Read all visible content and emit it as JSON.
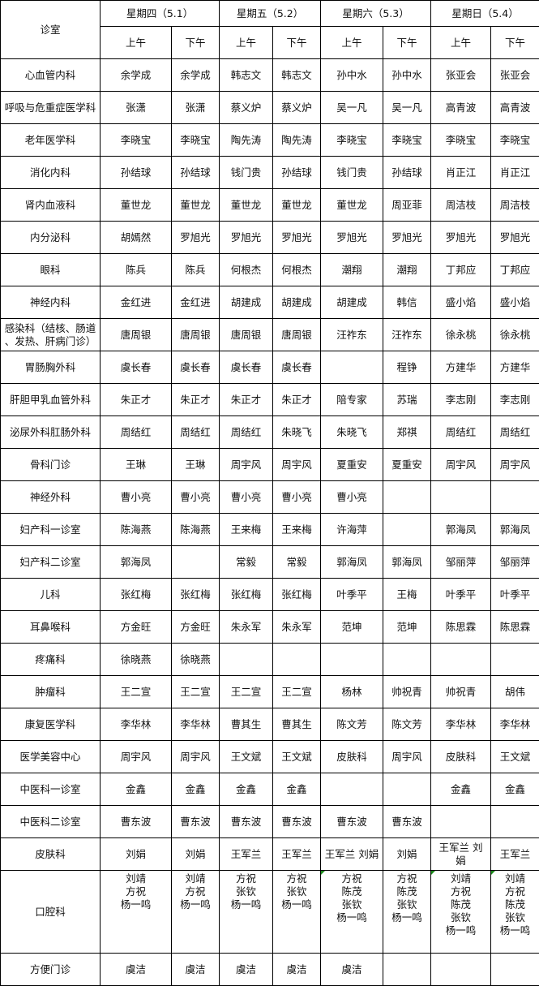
{
  "header": {
    "dept_label": "诊室",
    "days": [
      "星期四（5.1）",
      "星期五（5.2）",
      "星期六（5.3）",
      "星期日（5.4）"
    ],
    "am": "上午",
    "pm": "下午"
  },
  "rows": [
    {
      "dept": "心血管内科",
      "cells": [
        "余学成",
        "余学成",
        "韩志文",
        "韩志文",
        "孙中水",
        "孙中水",
        "张亚会",
        "张亚会"
      ]
    },
    {
      "dept": "呼吸与危重症医学科",
      "cells": [
        "张潇",
        "张潇",
        "蔡义炉",
        "蔡义炉",
        "吴一凡",
        "吴一凡",
        "高青波",
        "高青波"
      ]
    },
    {
      "dept": "老年医学科",
      "cells": [
        "李晓宝",
        "李晓宝",
        "陶先涛",
        "陶先涛",
        "李晓宝",
        "李晓宝",
        "李晓宝",
        "李晓宝"
      ]
    },
    {
      "dept": "消化内科",
      "cells": [
        "孙结球",
        "孙结球",
        "钱门贵",
        "孙结球",
        "钱门贵",
        "孙结球",
        "肖正江",
        "肖正江"
      ]
    },
    {
      "dept": "肾内血液科",
      "cells": [
        "董世龙",
        "董世龙",
        "董世龙",
        "董世龙",
        "董世龙",
        "周亚菲",
        "周洁枝",
        "周洁枝"
      ]
    },
    {
      "dept": "内分泌科",
      "cells": [
        "胡嫣然",
        "罗旭光",
        "罗旭光",
        "罗旭光",
        "罗旭光",
        "罗旭光",
        "罗旭光",
        "罗旭光"
      ]
    },
    {
      "dept": "眼科",
      "cells": [
        "陈兵",
        "陈兵",
        "何根杰",
        "何根杰",
        "潮翔",
        "潮翔",
        "丁邦应",
        "丁邦应"
      ]
    },
    {
      "dept": "神经内科",
      "cells": [
        "金红进",
        "金红进",
        "胡建成",
        "胡建成",
        "胡建成",
        "韩信",
        "盛小焰",
        "盛小焰"
      ]
    },
    {
      "dept": "感染科（结核、肠道\n、发热、肝病门诊）",
      "cells": [
        "唐周银",
        "唐周银",
        "唐周银",
        "唐周银",
        "汪祚东",
        "汪祚东",
        "徐永桃",
        "徐永桃"
      ]
    },
    {
      "dept": "胃肠胸外科",
      "cells": [
        "虞长春",
        "虞长春",
        "虞长春",
        "虞长春",
        "",
        "程铮",
        "方建华",
        "方建华"
      ]
    },
    {
      "dept": "肝胆甲乳血管外科",
      "cells": [
        "朱正才",
        "朱正才",
        "朱正才",
        "朱正才",
        "陪专家",
        "苏瑞",
        "李志刚",
        "李志刚"
      ]
    },
    {
      "dept": "泌尿外科肛肠外科",
      "cells": [
        "周结红",
        "周结红",
        "周结红",
        "朱晓飞",
        "朱晓飞",
        "郑祺",
        "周结红",
        "周结红"
      ]
    },
    {
      "dept": "骨科门诊",
      "cells": [
        "王琳",
        "王琳",
        "周宇风",
        "周宇风",
        "夏重安",
        "夏重安",
        "周宇风",
        "周宇风"
      ]
    },
    {
      "dept": "神经外科",
      "cells": [
        "曹小亮",
        "曹小亮",
        "曹小亮",
        "曹小亮",
        "曹小亮",
        "",
        "",
        ""
      ]
    },
    {
      "dept": "妇产科一诊室",
      "cells": [
        "陈海燕",
        "陈海燕",
        "王来梅",
        "王来梅",
        "许海萍",
        "",
        "郭海凤",
        "郭海凤"
      ]
    },
    {
      "dept": "妇产科二诊室",
      "cells": [
        "郭海凤",
        "",
        "常毅",
        "常毅",
        "郭海凤",
        "郭海凤",
        "邹丽萍",
        "邹丽萍"
      ]
    },
    {
      "dept": "儿科",
      "cells": [
        "张红梅",
        "张红梅",
        "张红梅",
        "张红梅",
        "叶季平",
        "王梅",
        "叶季平",
        "叶季平"
      ]
    },
    {
      "dept": "耳鼻喉科",
      "cells": [
        "方金旺",
        "方金旺",
        "朱永军",
        "朱永军",
        "范坤",
        "范坤",
        "陈思霖",
        "陈思霖"
      ]
    },
    {
      "dept": "疼痛科",
      "cells": [
        "徐晓燕",
        "徐晓燕",
        "",
        "",
        "",
        "",
        "",
        ""
      ]
    },
    {
      "dept": "肿瘤科",
      "cells": [
        "王二宣",
        "王二宣",
        "王二宣",
        "王二宣",
        "杨林",
        "帅祝青",
        "帅祝青",
        "胡伟"
      ]
    },
    {
      "dept": "康复医学科",
      "cells": [
        "李华林",
        "李华林",
        "曹其生",
        "曹其生",
        "陈文芳",
        "陈文芳",
        "李华林",
        "李华林"
      ]
    },
    {
      "dept": "医学美容中心",
      "cells": [
        "周宇风",
        "周宇风",
        "王文斌",
        "王文斌",
        "皮肤科",
        "周宇风",
        "皮肤科",
        "王文斌"
      ]
    },
    {
      "dept": "中医科一诊室",
      "cells": [
        "金鑫",
        "金鑫",
        "金鑫",
        "金鑫",
        "",
        "",
        "金鑫",
        "金鑫"
      ]
    },
    {
      "dept": "中医科二诊室",
      "cells": [
        "曹东波",
        "曹东波",
        "曹东波",
        "曹东波",
        "曹东波",
        "曹东波",
        "",
        ""
      ]
    },
    {
      "dept": "皮肤科",
      "cells": [
        "刘娟",
        "刘娟",
        "王军兰",
        "王军兰",
        "王军兰  刘娟",
        "刘娟",
        "王军兰  刘\n娟",
        "王军兰"
      ]
    }
  ],
  "dental": {
    "dept": "口腔科",
    "cells": [
      "刘靖\n方祝\n杨一鸣",
      "刘靖\n方祝\n杨一鸣",
      "方祝\n张钦\n杨一鸣",
      "方祝\n张钦\n杨一鸣",
      "方祝\n陈茂\n张钦\n杨一鸣",
      "方祝\n陈茂\n张钦\n杨一鸣",
      "刘靖\n方祝\n陈茂\n张钦\n杨一鸣",
      "刘靖\n方祝\n陈茂\n张钦\n杨一鸣"
    ]
  },
  "convenience": {
    "dept": "方便门诊",
    "cells": [
      "虞洁",
      "虞洁",
      "虞洁",
      "虞洁",
      "虞洁",
      "",
      "",
      ""
    ]
  },
  "colors": {
    "border": "#000000",
    "comment_marker": "#1a8a1a"
  }
}
